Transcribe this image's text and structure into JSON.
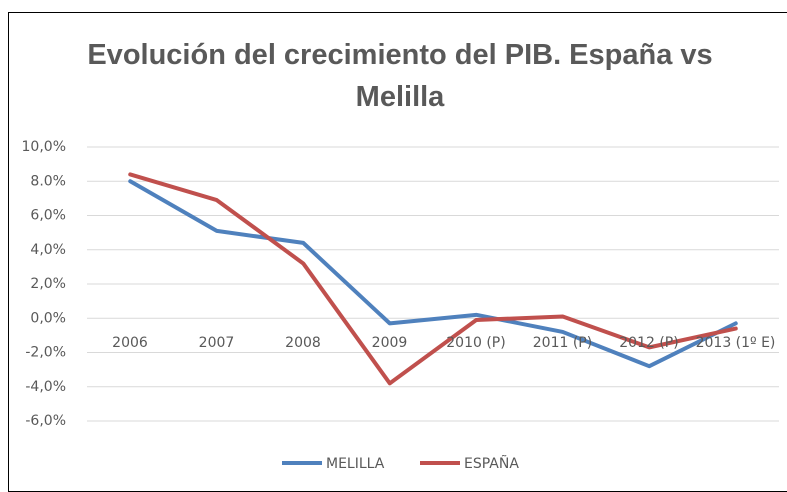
{
  "chart_data": {
    "type": "line",
    "title": "Evolución del crecimiento del PIB. España vs Melilla",
    "categories": [
      "2006",
      "2007",
      "2008",
      "2009",
      "2010 (P)",
      "2011 (P)",
      "2012 (P)",
      "2013 (1º E)"
    ],
    "series": [
      {
        "name": "MELILLA",
        "color": "#4f81bd",
        "values": [
          8.0,
          5.1,
          4.4,
          -0.3,
          0.2,
          -0.8,
          -2.8,
          -0.3
        ]
      },
      {
        "name": "ESPAÑA",
        "color": "#c0504d",
        "values": [
          8.4,
          6.9,
          3.2,
          -3.8,
          -0.1,
          0.1,
          -1.7,
          -0.6
        ]
      }
    ],
    "ylim": [
      -6,
      10
    ],
    "yticks": [
      {
        "value": 10,
        "label": "10,0%"
      },
      {
        "value": 8,
        "label": "8.0%"
      },
      {
        "value": 6,
        "label": "6,0%"
      },
      {
        "value": 4,
        "label": "4,0%"
      },
      {
        "value": 2,
        "label": "2,0%"
      },
      {
        "value": 0,
        "label": "0,0%"
      },
      {
        "value": -2,
        "label": "-2,0%"
      },
      {
        "value": -4,
        "label": "-4,0%"
      },
      {
        "value": -6,
        "label": "-6,0%"
      }
    ],
    "grid": true,
    "legend": "bottom"
  }
}
